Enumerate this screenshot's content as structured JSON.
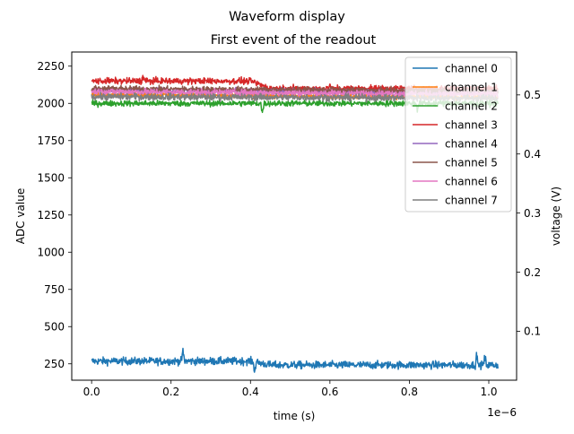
{
  "chart_data": {
    "type": "line",
    "title": "Waveform display",
    "subtitle": "First event of the readout",
    "xlabel": "time (s)",
    "ylabel": "ADC value",
    "y2label": "voltage (V)",
    "x_offset_label": "1e−6",
    "xlim": [
      -5e-08,
      1.07e-06
    ],
    "ylim": [
      140,
      2345
    ],
    "y2lim": [
      0.0171,
      0.5726
    ],
    "x_ticks": [
      0.0,
      2e-07,
      4e-07,
      6e-07,
      8e-07,
      1e-06
    ],
    "x_tick_labels": [
      "0.0",
      "0.2",
      "0.4",
      "0.6",
      "0.8",
      "1.0"
    ],
    "y_ticks": [
      250,
      500,
      750,
      1000,
      1250,
      1500,
      1750,
      2000,
      2250
    ],
    "y_tick_labels": [
      "250",
      "500",
      "750",
      "1000",
      "1250",
      "1500",
      "1750",
      "2000",
      "2250"
    ],
    "y2_ticks": [
      0.1,
      0.2,
      0.3,
      0.4,
      0.5
    ],
    "y2_tick_labels": [
      "0.1",
      "0.2",
      "0.3",
      "0.4",
      "0.5"
    ],
    "grid": false,
    "legend_position": "top-right",
    "x_range": [
      0.0,
      1.023e-06
    ],
    "series": [
      {
        "name": "channel 0",
        "color": "#1f77b4",
        "baseline": [
          [
            0.0,
            268
          ],
          [
            4e-07,
            268
          ],
          [
            4.5e-07,
            242
          ],
          [
            1.023e-06,
            242
          ]
        ],
        "noise": 18,
        "spikes": [
          [
            2.3e-07,
            85
          ],
          [
            4.1e-07,
            -80
          ],
          [
            9.7e-07,
            75
          ],
          [
            9.9e-07,
            70
          ]
        ]
      },
      {
        "name": "channel 1",
        "color": "#ff7f0e",
        "baseline": [
          [
            0.0,
            2060
          ],
          [
            1.023e-06,
            2040
          ]
        ],
        "noise": 12,
        "spikes": []
      },
      {
        "name": "channel 2",
        "color": "#2ca02c",
        "baseline": [
          [
            0.0,
            2000
          ],
          [
            1.023e-06,
            2000
          ]
        ],
        "noise": 14,
        "spikes": [
          [
            4.3e-07,
            -85
          ],
          [
            8.2e-07,
            -45
          ]
        ]
      },
      {
        "name": "channel 3",
        "color": "#d62728",
        "baseline": [
          [
            0.0,
            2150
          ],
          [
            4e-07,
            2150
          ],
          [
            4.5e-07,
            2100
          ],
          [
            1.023e-06,
            2100
          ]
        ],
        "noise": 15,
        "spikes": [
          [
            1.3e-07,
            45
          ],
          [
            6e-07,
            30
          ]
        ]
      },
      {
        "name": "channel 4",
        "color": "#9467bd",
        "baseline": [
          [
            0.0,
            2090
          ],
          [
            1.023e-06,
            2070
          ]
        ],
        "noise": 14,
        "spikes": []
      },
      {
        "name": "channel 5",
        "color": "#8c564b",
        "baseline": [
          [
            0.0,
            2100
          ],
          [
            1.023e-06,
            2080
          ]
        ],
        "noise": 14,
        "spikes": []
      },
      {
        "name": "channel 6",
        "color": "#e377c2",
        "baseline": [
          [
            0.0,
            2080
          ],
          [
            1.023e-06,
            2060
          ]
        ],
        "noise": 15,
        "spikes": []
      },
      {
        "name": "channel 7",
        "color": "#7f7f7f",
        "baseline": [
          [
            0.0,
            2045
          ],
          [
            1.023e-06,
            2035
          ]
        ],
        "noise": 16,
        "spikes": []
      }
    ]
  }
}
